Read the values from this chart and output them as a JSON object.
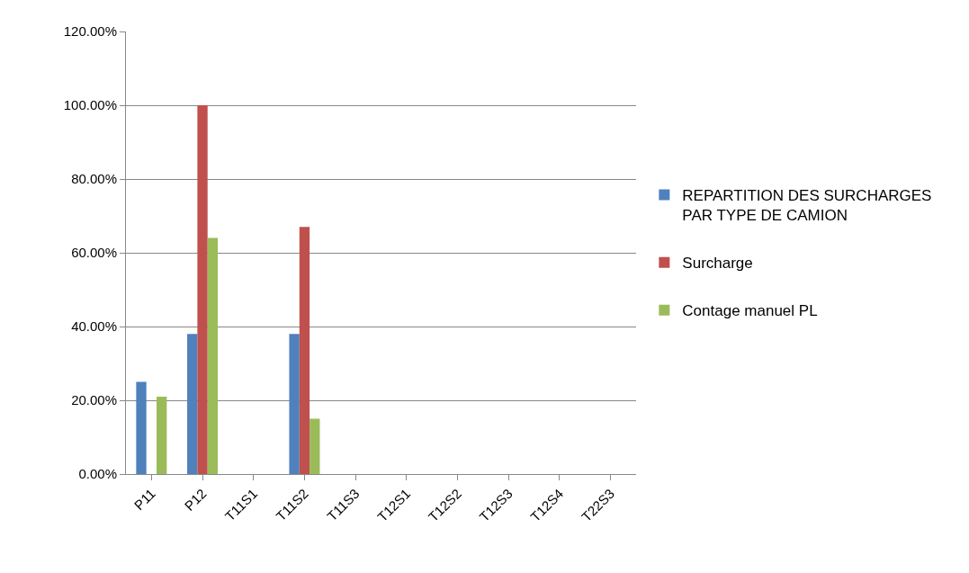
{
  "chart_data": {
    "type": "bar",
    "categories": [
      "P11",
      "P12",
      "T11S1",
      "T11S2",
      "T11S3",
      "T12S1",
      "T12S2",
      "T12S3",
      "T12S4",
      "T22S3"
    ],
    "series": [
      {
        "name": "REPARTITION DES SURCHARGES PAR TYPE DE CAMION",
        "color": "#4f81bd",
        "values": [
          25,
          38,
          0,
          38,
          0,
          0,
          0,
          0,
          0,
          0
        ]
      },
      {
        "name": "Surcharge",
        "color": "#c0504d",
        "values": [
          0,
          100,
          0,
          67,
          0,
          0,
          0,
          0,
          0,
          0
        ]
      },
      {
        "name": "Contage manuel PL",
        "color": "#9bbb59",
        "values": [
          21,
          64,
          0,
          15,
          0,
          0,
          0,
          0,
          0,
          0
        ]
      }
    ],
    "ylim": [
      0,
      120
    ],
    "yticks": [
      {
        "value": 0,
        "label": "0.00%"
      },
      {
        "value": 20,
        "label": "20.00%"
      },
      {
        "value": 40,
        "label": "40.00%"
      },
      {
        "value": 60,
        "label": "60.00%"
      },
      {
        "value": 80,
        "label": "80.00%"
      },
      {
        "value": 100,
        "label": "100.00%"
      },
      {
        "value": 120,
        "label": "120.00%"
      }
    ],
    "grid": "y",
    "legend": "right"
  }
}
